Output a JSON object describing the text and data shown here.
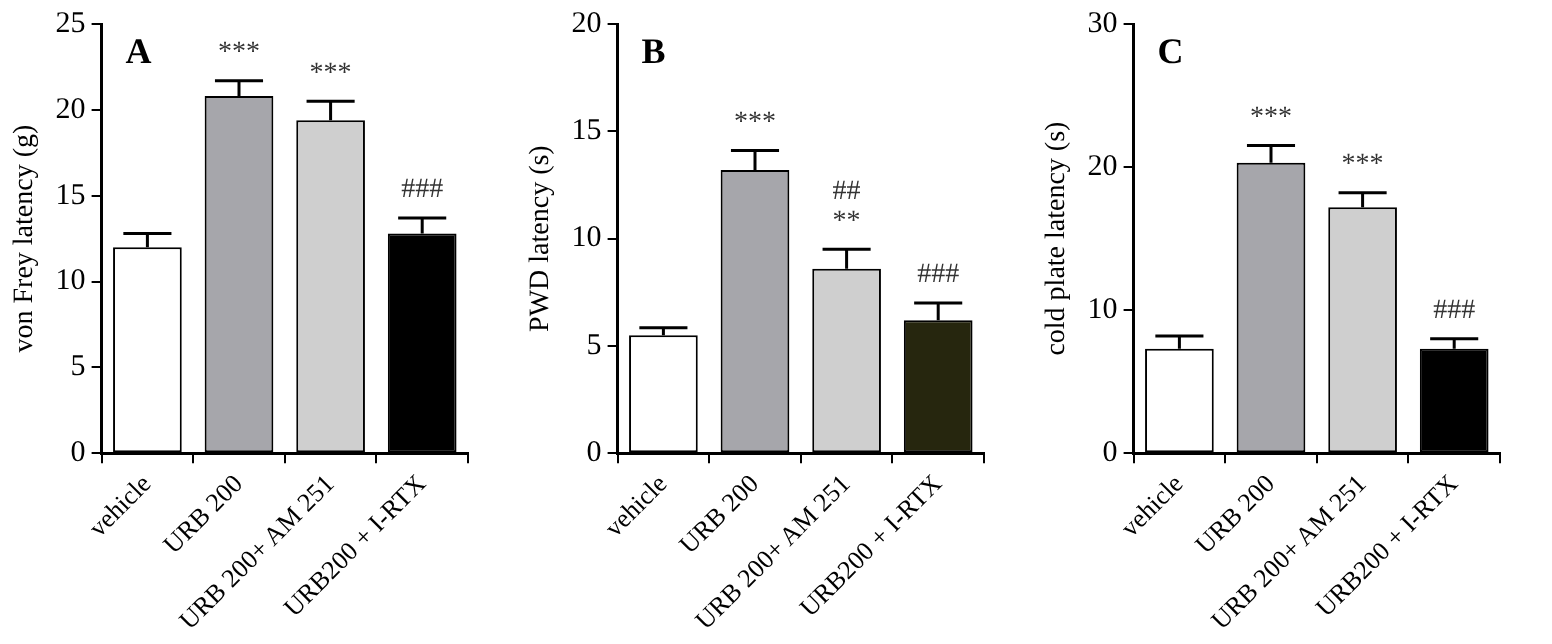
{
  "chart_data": [
    {
      "type": "bar",
      "title": "A",
      "ylabel": "von Frey latency (g)",
      "categories": [
        "vehicle",
        "URB 200",
        "URB 200+ AM 251",
        "URB200 + I-RTX"
      ],
      "values": [
        12.0,
        20.8,
        19.4,
        12.8
      ],
      "colors": [
        "#ffffff",
        "#a6a6ab",
        "#cfcfcf",
        "#000000"
      ],
      "errors": [
        [
          12.0,
          12.8
        ],
        [
          20.8,
          21.7
        ],
        [
          19.4,
          20.5
        ],
        [
          12.8,
          13.7
        ]
      ],
      "ylim": [
        0,
        25
      ],
      "yticks": [
        0,
        5,
        10,
        15,
        20,
        25
      ],
      "grid": false,
      "value_labels": [
        null,
        "***",
        "***",
        "###"
      ]
    },
    {
      "type": "bar",
      "title": "B",
      "ylabel": "PWD latency (s)",
      "categories": [
        "vehicle",
        "URB 200",
        "URB 200+ AM 251",
        "URB200 + I-RTX"
      ],
      "values": [
        5.5,
        13.2,
        8.6,
        6.2
      ],
      "colors": [
        "#ffffff",
        "#a6a6ab",
        "#cfcfcf",
        "#26260e"
      ],
      "errors": [
        [
          5.5,
          5.85
        ],
        [
          13.2,
          14.1
        ],
        [
          8.6,
          9.5
        ],
        [
          6.2,
          7.0
        ]
      ],
      "ylim": [
        0,
        20
      ],
      "yticks": [
        0,
        5,
        10,
        15,
        20
      ],
      "grid": false,
      "value_labels": [
        null,
        "***",
        "##\n**",
        "###"
      ]
    },
    {
      "type": "bar",
      "title": "C",
      "ylabel": "cold plate latency (s)",
      "categories": [
        "vehicle",
        "URB 200",
        "URB 200+ AM 251",
        "URB200 + I-RTX"
      ],
      "values": [
        7.3,
        20.3,
        17.2,
        7.3
      ],
      "colors": [
        "#ffffff",
        "#a6a6ab",
        "#cfcfcf",
        "#000000"
      ],
      "errors": [
        [
          7.3,
          8.2
        ],
        [
          20.3,
          21.5
        ],
        [
          17.2,
          18.2
        ],
        [
          7.3,
          8.0
        ]
      ],
      "ylim": [
        0,
        30
      ],
      "yticks": [
        0,
        10,
        20,
        30
      ],
      "grid": false,
      "value_labels": [
        null,
        "***",
        "***",
        "###"
      ]
    }
  ]
}
